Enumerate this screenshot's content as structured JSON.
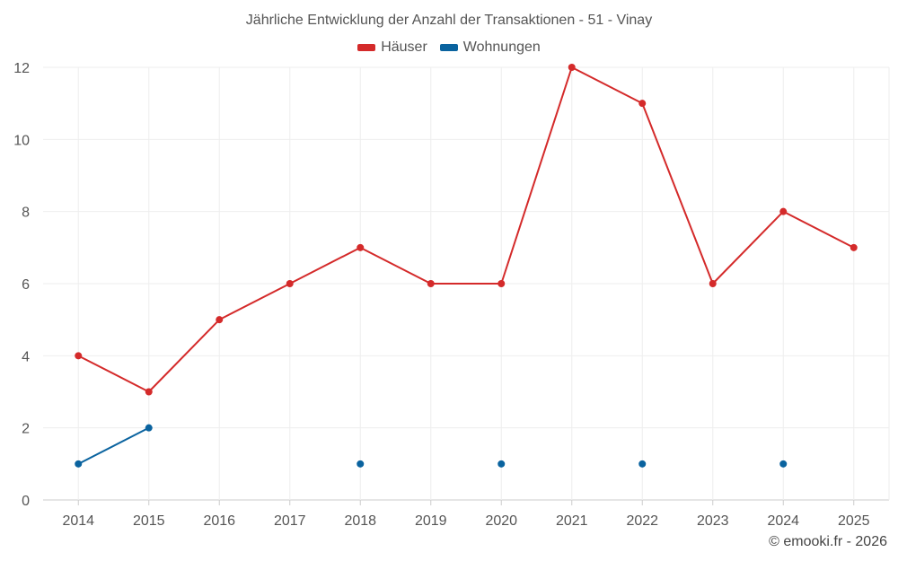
{
  "chart_data": {
    "type": "line",
    "title": "Jährliche Entwicklung der Anzahl der Transaktionen - 51 - Vinay",
    "categories": [
      "2014",
      "2015",
      "2016",
      "2017",
      "2018",
      "2019",
      "2020",
      "2021",
      "2022",
      "2023",
      "2024",
      "2025"
    ],
    "series": [
      {
        "name": "Häuser",
        "color": "#d42a2a",
        "values": [
          4,
          3,
          5,
          6,
          7,
          6,
          6,
          12,
          11,
          6,
          8,
          7
        ]
      },
      {
        "name": "Wohnungen",
        "color": "#0a639f",
        "values": [
          1,
          2,
          null,
          null,
          1,
          null,
          1,
          null,
          1,
          null,
          1,
          null
        ]
      }
    ],
    "ylim": [
      0,
      12
    ],
    "yticks": [
      0,
      2,
      4,
      6,
      8,
      10,
      12
    ],
    "grid": true,
    "legend": "top-center",
    "xlabel": "",
    "ylabel": ""
  },
  "credit": "© emooki.fr - 2026"
}
